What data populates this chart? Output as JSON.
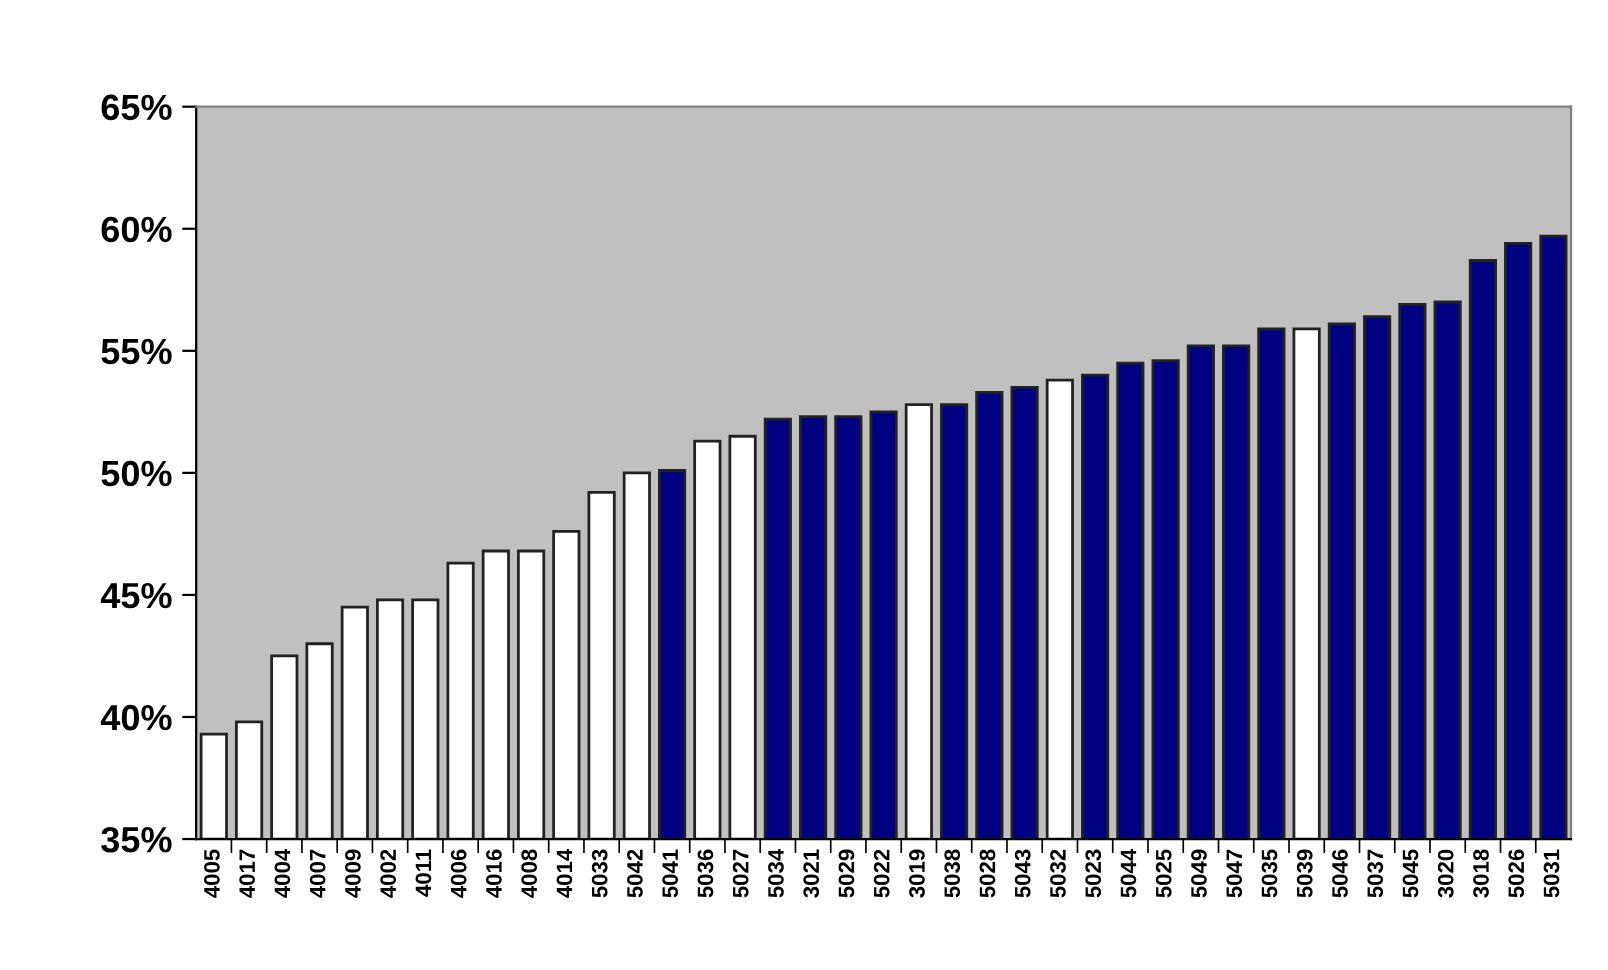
{
  "chart_data": {
    "type": "bar",
    "categories": [
      "4005",
      "4017",
      "4004",
      "4007",
      "4009",
      "4002",
      "4011",
      "4006",
      "4016",
      "4008",
      "4014",
      "5033",
      "5042",
      "5041",
      "5036",
      "5027",
      "5034",
      "3021",
      "5029",
      "5022",
      "3019",
      "5038",
      "5028",
      "5043",
      "5032",
      "5023",
      "5044",
      "5025",
      "5049",
      "5047",
      "5035",
      "5039",
      "5046",
      "5037",
      "5045",
      "3020",
      "3018",
      "5026",
      "5031"
    ],
    "values": [
      39.3,
      39.8,
      42.5,
      43.0,
      44.5,
      44.8,
      44.8,
      46.3,
      46.8,
      46.8,
      47.6,
      49.2,
      50.0,
      50.1,
      51.3,
      51.5,
      52.2,
      52.3,
      52.3,
      52.5,
      52.8,
      52.8,
      53.3,
      53.5,
      53.8,
      54.0,
      54.5,
      54.6,
      55.2,
      55.2,
      55.9,
      55.9,
      56.1,
      56.4,
      56.9,
      57.0,
      58.7,
      59.4,
      59.7
    ],
    "colors": [
      "#ffffff",
      "#ffffff",
      "#ffffff",
      "#ffffff",
      "#ffffff",
      "#ffffff",
      "#ffffff",
      "#ffffff",
      "#ffffff",
      "#ffffff",
      "#ffffff",
      "#ffffff",
      "#ffffff",
      "#000080",
      "#ffffff",
      "#ffffff",
      "#000080",
      "#000080",
      "#000080",
      "#000080",
      "#ffffff",
      "#000080",
      "#000080",
      "#000080",
      "#ffffff",
      "#000080",
      "#000080",
      "#000080",
      "#000080",
      "#000080",
      "#000080",
      "#ffffff",
      "#000080",
      "#000080",
      "#000080",
      "#000080",
      "#000080",
      "#000080",
      "#000080"
    ],
    "ylim": [
      35,
      65
    ],
    "yticks": [
      {
        "value": 35,
        "label": "35%"
      },
      {
        "value": 40,
        "label": "40%"
      },
      {
        "value": 45,
        "label": "45%"
      },
      {
        "value": 50,
        "label": "50%"
      },
      {
        "value": 55,
        "label": "55%"
      },
      {
        "value": 60,
        "label": "60%"
      },
      {
        "value": 65,
        "label": "65%"
      }
    ],
    "grid": false,
    "legend": false
  }
}
